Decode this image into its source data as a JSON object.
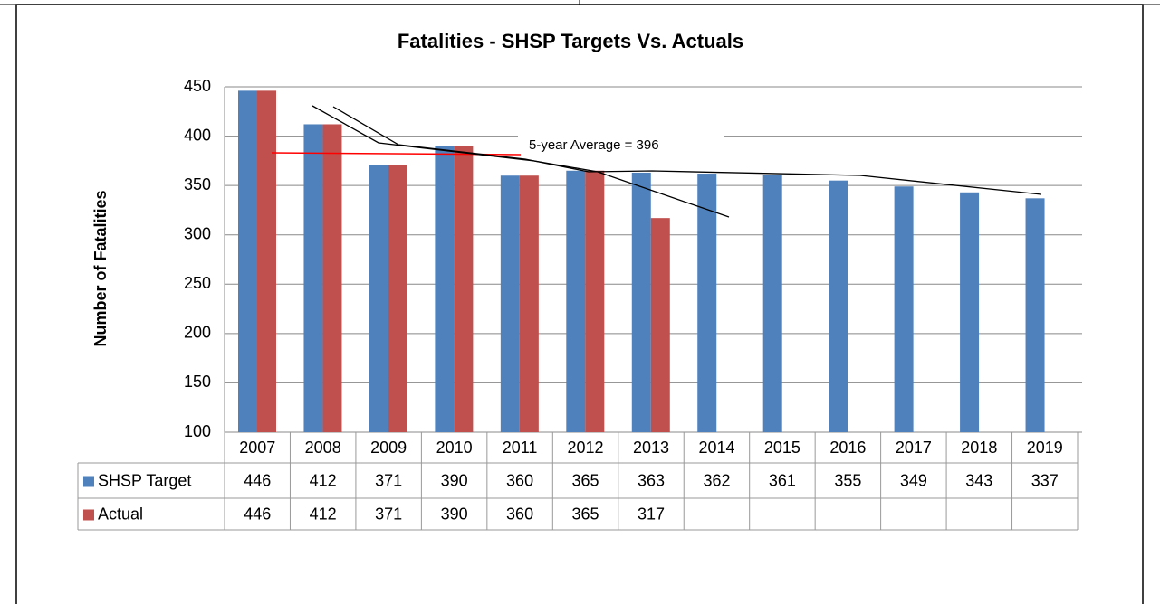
{
  "chart_data": {
    "type": "bar",
    "title": "Fatalities - SHSP Targets Vs. Actuals",
    "y_label": "Number of Fatalities",
    "annotation": "5-year Average = 396",
    "categories": [
      "2007",
      "2008",
      "2009",
      "2010",
      "2011",
      "2012",
      "2013",
      "2014",
      "2015",
      "2016",
      "2017",
      "2018",
      "2019"
    ],
    "series": [
      {
        "name": "SHSP Target",
        "color": "#4f81bd",
        "values": [
          446,
          412,
          371,
          390,
          360,
          365,
          363,
          362,
          361,
          355,
          349,
          343,
          337
        ]
      },
      {
        "name": "Actual",
        "color": "#c0504d",
        "values": [
          446,
          412,
          371,
          390,
          360,
          365,
          317,
          null,
          null,
          null,
          null,
          null,
          null
        ]
      }
    ],
    "ylim": [
      100,
      450
    ],
    "yticks": [
      100,
      150,
      200,
      250,
      300,
      350,
      400,
      450
    ],
    "grid": true
  }
}
